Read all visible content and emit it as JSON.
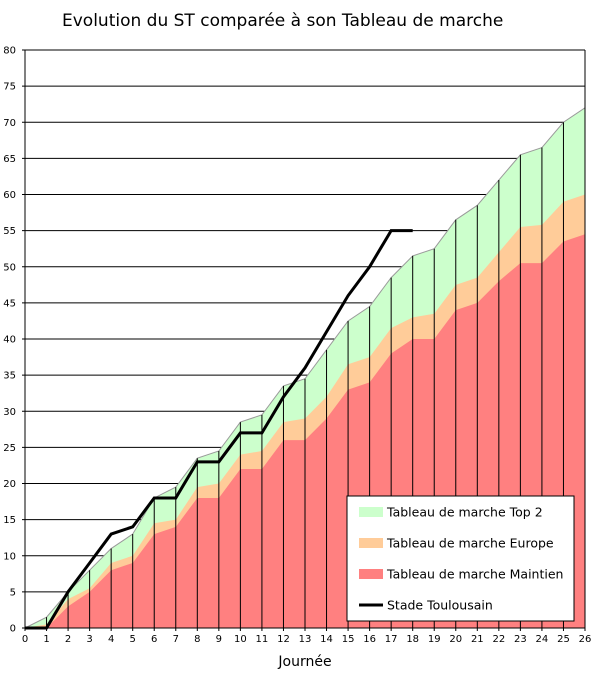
{
  "chart_data": {
    "type": "area",
    "title": "Evolution du ST comparée à son Tableau de marche",
    "xlabel": "Journée",
    "ylabel": "",
    "xlim": [
      0,
      26
    ],
    "ylim": [
      0,
      80
    ],
    "x_ticks": [
      0,
      1,
      2,
      3,
      4,
      5,
      6,
      7,
      8,
      9,
      10,
      11,
      12,
      13,
      14,
      15,
      16,
      17,
      18,
      19,
      20,
      21,
      22,
      23,
      24,
      25,
      26
    ],
    "y_ticks": [
      0,
      5,
      10,
      15,
      20,
      25,
      30,
      35,
      40,
      45,
      50,
      55,
      60,
      65,
      70,
      75,
      80
    ],
    "grid": "horizontal",
    "legend_position": "bottom-right",
    "series": [
      {
        "name": "Tableau de marche Top 2",
        "kind": "area",
        "color": "#ccffcc",
        "x": [
          0,
          1,
          2,
          3,
          4,
          5,
          6,
          7,
          8,
          9,
          10,
          11,
          12,
          13,
          14,
          15,
          16,
          17,
          18,
          19,
          20,
          21,
          22,
          23,
          24,
          25,
          26
        ],
        "values": [
          0,
          1.5,
          5,
          8,
          11,
          13,
          18,
          19.5,
          23.5,
          24.5,
          28.5,
          29.5,
          33.5,
          34.5,
          38.5,
          42.5,
          44.5,
          48.5,
          51.5,
          52.5,
          56.5,
          58.5,
          62,
          65.5,
          66.5,
          70,
          72
        ]
      },
      {
        "name": "Tableau de marche Europe",
        "kind": "area",
        "color": "#ffcc99",
        "x": [
          0,
          1,
          2,
          3,
          4,
          5,
          6,
          7,
          8,
          9,
          10,
          11,
          12,
          13,
          14,
          15,
          16,
          17,
          18,
          19,
          20,
          21,
          22,
          23,
          24,
          25,
          26
        ],
        "values": [
          0,
          0.5,
          4,
          5.5,
          9,
          10,
          14.5,
          15,
          19.5,
          20,
          24,
          24.5,
          28.5,
          29,
          32,
          36.5,
          37.5,
          41.5,
          43,
          43.5,
          47.5,
          48.5,
          52,
          55.5,
          55.8,
          59,
          60
        ]
      },
      {
        "name": "Tableau de marche Maintien",
        "kind": "area",
        "color": "#ff8080",
        "x": [
          0,
          1,
          2,
          3,
          4,
          5,
          6,
          7,
          8,
          9,
          10,
          11,
          12,
          13,
          14,
          15,
          16,
          17,
          18,
          19,
          20,
          21,
          22,
          23,
          24,
          25,
          26
        ],
        "values": [
          0,
          0,
          3,
          5,
          8,
          9,
          13,
          14,
          18,
          18,
          22,
          22,
          26,
          26,
          29,
          33,
          34,
          38,
          40,
          40,
          44,
          45,
          48,
          50.5,
          50.5,
          53.5,
          54.5
        ]
      },
      {
        "name": "Stade Toulousain",
        "kind": "line",
        "color": "#000000",
        "x": [
          0,
          1,
          2,
          3,
          4,
          5,
          6,
          7,
          8,
          9,
          10,
          11,
          12,
          13,
          14,
          15,
          16,
          17,
          18
        ],
        "values": [
          0,
          0,
          5,
          9,
          13,
          14,
          18,
          18,
          23,
          23,
          27,
          27,
          32,
          36,
          41,
          46,
          50,
          55,
          55
        ]
      }
    ]
  }
}
